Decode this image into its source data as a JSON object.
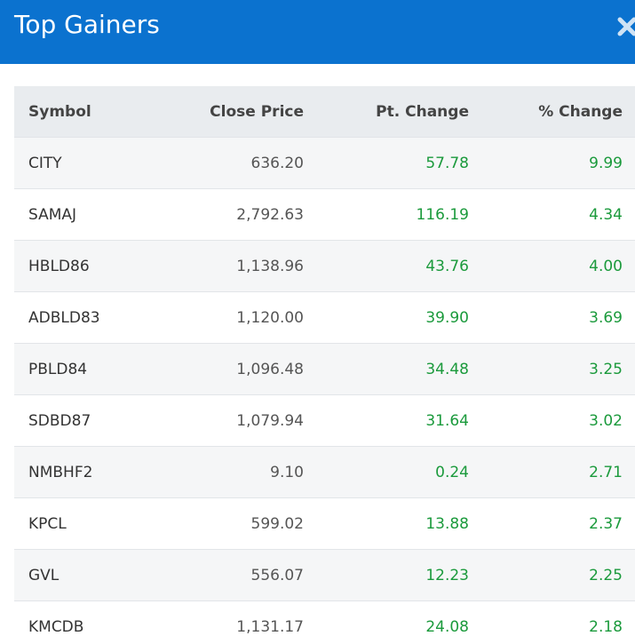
{
  "header": {
    "title": "Top Gainers"
  },
  "table": {
    "columns": [
      "Symbol",
      "Close Price",
      "Pt. Change",
      "% Change"
    ],
    "rows": [
      [
        "CITY",
        "636.20",
        "57.78",
        "9.99"
      ],
      [
        "SAMAJ",
        "2,792.63",
        "116.19",
        "4.34"
      ],
      [
        "HBLD86",
        "1,138.96",
        "43.76",
        "4.00"
      ],
      [
        "ADBLD83",
        "1,120.00",
        "39.90",
        "3.69"
      ],
      [
        "PBLD84",
        "1,096.48",
        "34.48",
        "3.25"
      ],
      [
        "SDBD87",
        "1,079.94",
        "31.64",
        "3.02"
      ],
      [
        "NMBHF2",
        "9.10",
        "0.24",
        "2.71"
      ],
      [
        "KPCL",
        "599.02",
        "13.88",
        "2.37"
      ],
      [
        "GVL",
        "556.07",
        "12.23",
        "2.25"
      ],
      [
        "KMCDB",
        "1,131.17",
        "24.08",
        "2.18"
      ]
    ]
  }
}
